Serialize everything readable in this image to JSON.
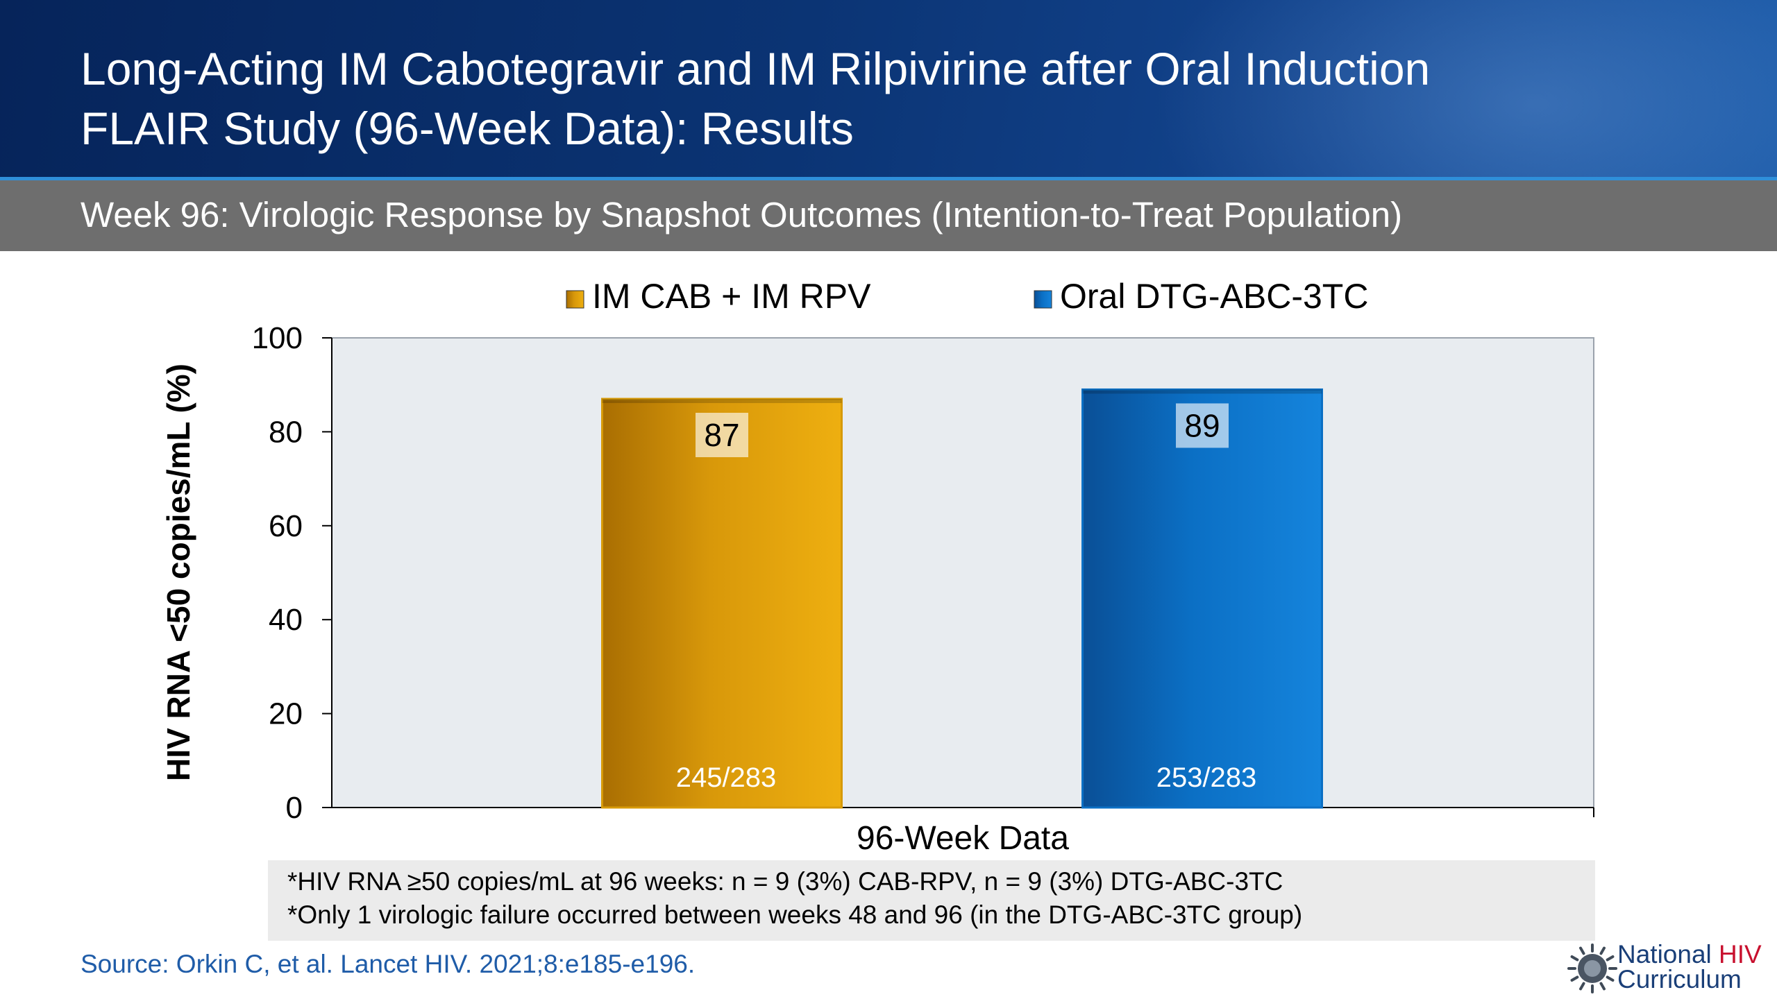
{
  "header": {
    "title_line1": "Long-Acting IM Cabotegravir and IM Rilpivirine after Oral Induction",
    "title_line2": "FLAIR Study (96-Week Data): Results",
    "subtitle": "Week 96: Virologic Response by Snapshot Outcomes (Intention-to-Treat Population)"
  },
  "chart_data": {
    "type": "bar",
    "title": "",
    "xlabel": "96-Week Data",
    "ylabel": "HIV RNA <50 copies/mL (%)",
    "ylim": [
      0,
      100
    ],
    "yticks": [
      0,
      20,
      40,
      60,
      80,
      100
    ],
    "legend_position": "top",
    "grid": false,
    "plot_background": "#e8ecf0",
    "series": [
      {
        "name": "IM CAB + IM RPV",
        "value": 87,
        "value_label": "87",
        "count_label": "245/283",
        "color": "#d79a08"
      },
      {
        "name": "Oral DTG-ABC-3TC",
        "value": 89,
        "value_label": "89",
        "count_label": "253/283",
        "color": "#0b6fc4"
      }
    ]
  },
  "footnotes": {
    "line1": "*HIV RNA ≥50 copies/mL at 96 weeks: n = 9 (3%) CAB-RPV, n = 9 (3%) DTG-ABC-3TC",
    "line2": "*Only 1 virologic failure occurred between weeks 48 and 96 (in the DTG-ABC-3TC group)"
  },
  "source": "Source: Orkin C, et al. Lancet HIV. 2021;8:e185-e196.",
  "logo": {
    "line1_a": "National ",
    "line1_b": "HIV",
    "line2": "Curriculum",
    "icon": "gear-sun-icon"
  }
}
